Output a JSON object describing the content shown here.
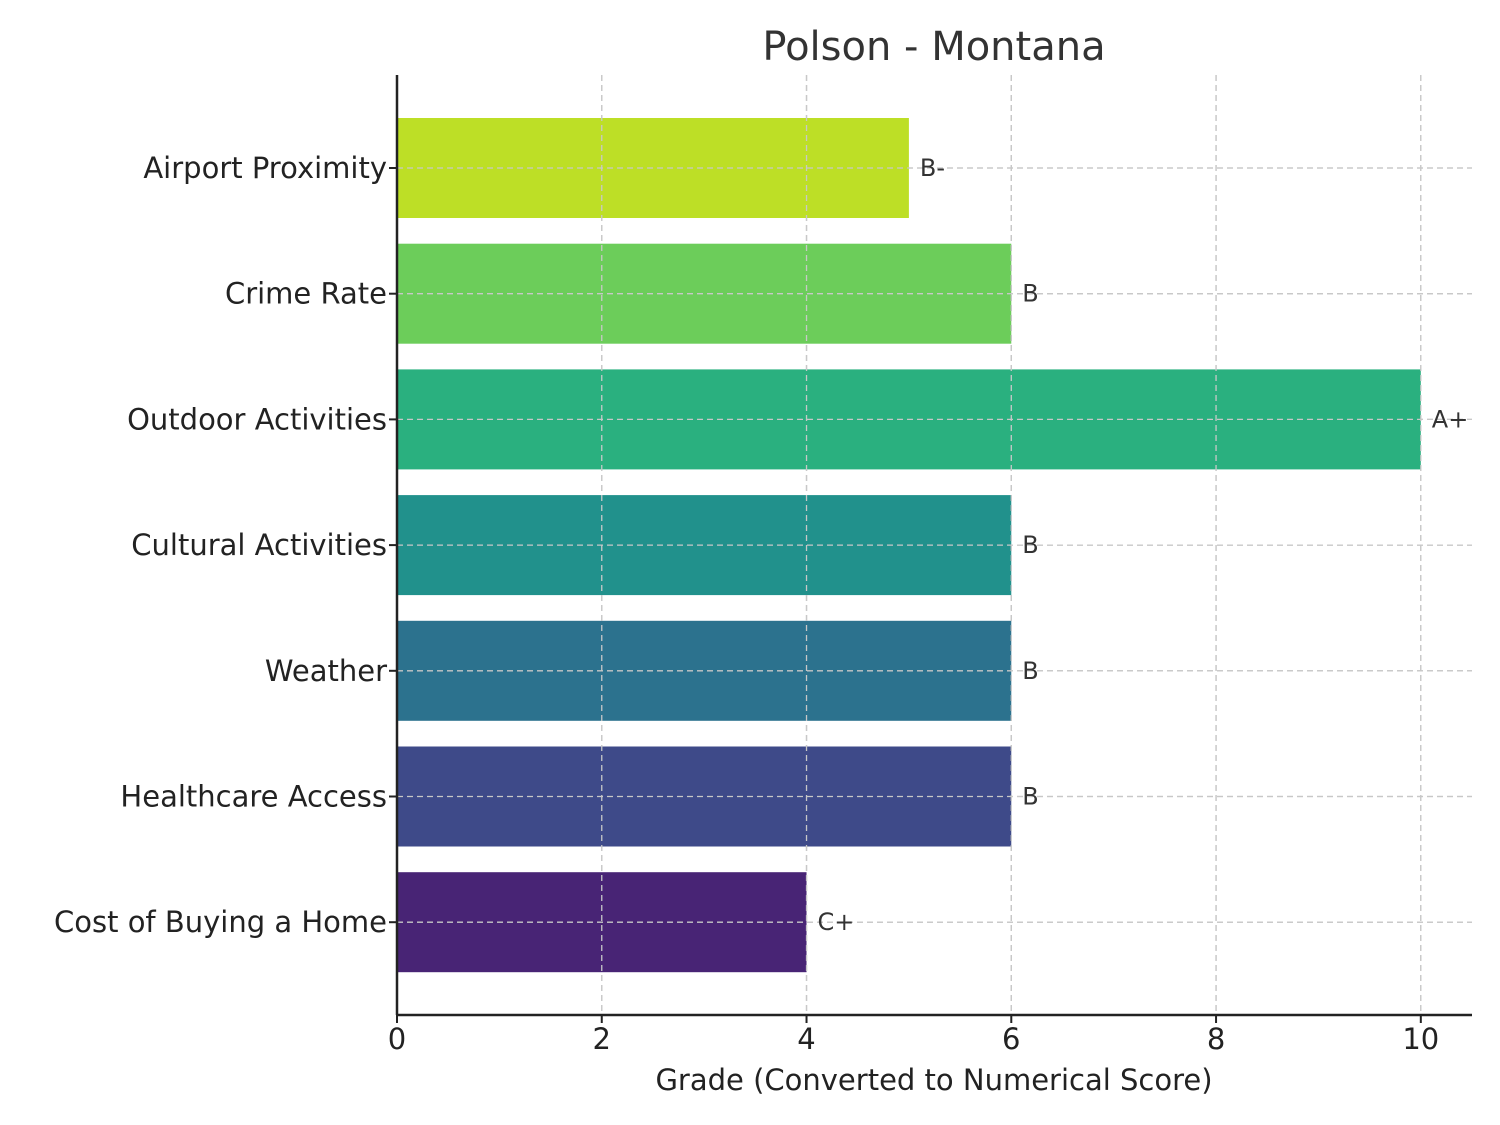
{
  "chart_data": {
    "type": "bar",
    "orientation": "horizontal",
    "title": "Polson - Montana",
    "xlabel": "Grade (Converted to Numerical Score)",
    "ylabel": "",
    "xlim": [
      0,
      10.5
    ],
    "xticks": [
      0,
      2,
      4,
      6,
      8,
      10
    ],
    "grid": true,
    "categories": [
      "Airport Proximity",
      "Crime Rate",
      "Outdoor Activities",
      "Cultural Activities",
      "Weather",
      "Healthcare Access",
      "Cost of Buying a Home"
    ],
    "values": [
      5,
      6,
      10,
      6,
      6,
      6,
      4
    ],
    "labels": [
      "B-",
      "B",
      "A+",
      "B",
      "B",
      "B",
      "C+"
    ],
    "colors": [
      "#bddf26",
      "#6ccd5a",
      "#2ab07f",
      "#21918c",
      "#2c728e",
      "#3e4a89",
      "#482475"
    ]
  }
}
